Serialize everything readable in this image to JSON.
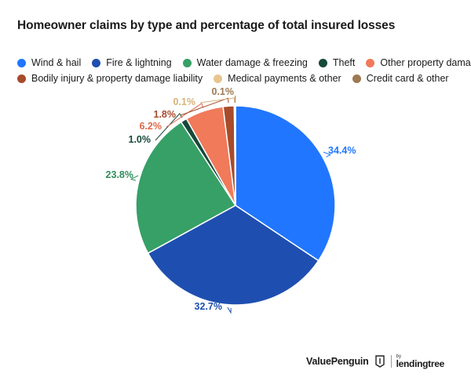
{
  "chart_data": {
    "type": "pie",
    "title": "Homeowner claims by type and percentage of total insured losses",
    "start_angle_deg": 0,
    "direction": "clockwise",
    "slices": [
      {
        "label": "Wind & hail",
        "value": 34.4,
        "value_label": "34.4%",
        "color": "#2176ff",
        "label_color": "#2176ff"
      },
      {
        "label": "Fire & lightning",
        "value": 32.7,
        "value_label": "32.7%",
        "color": "#1e4fb0",
        "label_color": "#1e4fb0"
      },
      {
        "label": "Water damage & freezing",
        "value": 23.8,
        "value_label": "23.8%",
        "color": "#36a066",
        "label_color": "#2f8f5a"
      },
      {
        "label": "Theft",
        "value": 1.0,
        "value_label": "1.0%",
        "color": "#16493a",
        "label_color": "#16493a"
      },
      {
        "label": "Other property damage",
        "value": 6.2,
        "value_label": "6.2%",
        "color": "#f07a5a",
        "label_color": "#e0694a"
      },
      {
        "label": "Bodily injury & property damage liability",
        "value": 1.8,
        "value_label": "1.8%",
        "color": "#a74b2b",
        "label_color": "#a74b2b"
      },
      {
        "label": "Medical payments & other",
        "value": 0.1,
        "value_label": "0.1%",
        "color": "#e7c58e",
        "label_color": "#d9b27a"
      },
      {
        "label": "Credit card & other",
        "value": 0.1,
        "value_label": "0.1%",
        "color": "#9e7a52",
        "label_color": "#9e7a52"
      }
    ],
    "legend_position": "top-left"
  },
  "footer": {
    "brand": "ValuePenguin",
    "partner_prefix": "by",
    "partner": "lendingtree"
  }
}
